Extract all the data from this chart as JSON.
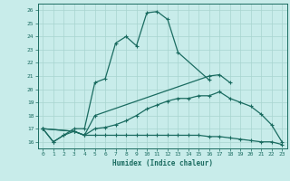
{
  "xlabel": "Humidex (Indice chaleur)",
  "bg_color": "#c8ecea",
  "line_color": "#1a6b60",
  "grid_color": "#a8d4cf",
  "xlim": [
    -0.5,
    23.5
  ],
  "ylim": [
    15.5,
    26.5
  ],
  "yticks": [
    16,
    17,
    18,
    19,
    20,
    21,
    22,
    23,
    24,
    25,
    26
  ],
  "xticks": [
    0,
    1,
    2,
    3,
    4,
    5,
    6,
    7,
    8,
    9,
    10,
    11,
    12,
    13,
    14,
    15,
    16,
    17,
    18,
    19,
    20,
    21,
    22,
    23
  ],
  "s1_x": [
    0,
    1,
    2,
    3,
    4,
    5,
    6,
    7,
    8,
    9,
    10,
    11,
    12,
    13,
    16
  ],
  "s1_y": [
    17.0,
    16.0,
    16.5,
    17.0,
    17.0,
    20.5,
    20.8,
    23.5,
    24.0,
    23.3,
    25.8,
    25.9,
    25.3,
    22.8,
    20.7
  ],
  "s2_x": [
    0,
    1,
    2,
    3,
    4,
    5,
    16,
    17,
    18
  ],
  "s2_y": [
    17.0,
    16.0,
    16.5,
    16.8,
    16.5,
    18.0,
    21.0,
    21.1,
    20.5
  ],
  "s3_x": [
    0,
    3,
    4,
    5,
    6,
    7,
    8,
    9,
    10,
    11,
    12,
    13,
    14,
    15,
    16,
    17,
    18,
    19,
    20,
    21,
    22,
    23
  ],
  "s3_y": [
    17.0,
    16.8,
    16.5,
    17.0,
    17.1,
    17.3,
    17.6,
    18.0,
    18.5,
    18.8,
    19.1,
    19.3,
    19.3,
    19.5,
    19.5,
    19.8,
    19.3,
    19.0,
    18.7,
    18.1,
    17.3,
    16.0
  ],
  "s4_x": [
    0,
    3,
    4,
    5,
    6,
    7,
    8,
    9,
    10,
    11,
    12,
    13,
    14,
    15,
    16,
    17,
    18,
    19,
    20,
    21,
    22,
    23
  ],
  "s4_y": [
    17.0,
    16.8,
    16.5,
    16.5,
    16.5,
    16.5,
    16.5,
    16.5,
    16.5,
    16.5,
    16.5,
    16.5,
    16.5,
    16.5,
    16.4,
    16.4,
    16.3,
    16.2,
    16.1,
    16.0,
    16.0,
    15.8
  ]
}
